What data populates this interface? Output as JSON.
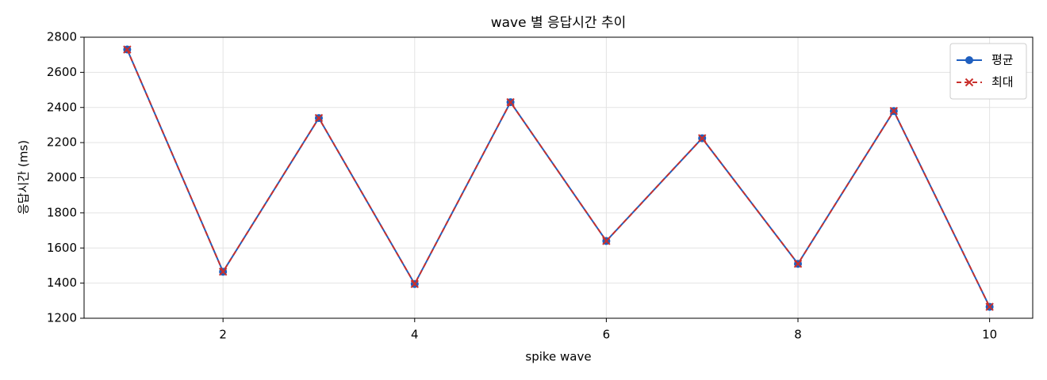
{
  "chart_data": {
    "type": "line",
    "title": "wave 별 응답시간 추이",
    "xlabel": "spike wave",
    "ylabel": "응답시간 (ms)",
    "x": [
      1,
      2,
      3,
      4,
      5,
      6,
      7,
      8,
      9,
      10
    ],
    "series": [
      {
        "name": "평균",
        "color": "#1f5fbf",
        "linestyle": "solid",
        "marker": "circle",
        "values": [
          2730,
          1465,
          2340,
          1395,
          2430,
          1640,
          2225,
          1510,
          2380,
          1265
        ]
      },
      {
        "name": "최대",
        "color": "#c9302c",
        "linestyle": "dashed",
        "marker": "x",
        "values": [
          2730,
          1465,
          2340,
          1395,
          2430,
          1640,
          2225,
          1510,
          2380,
          1265
        ]
      }
    ],
    "xlim": [
      0.55,
      10.45
    ],
    "xticks": [
      2,
      4,
      6,
      8,
      10
    ],
    "ylim": [
      1200,
      2800
    ],
    "yticks": [
      1200,
      1400,
      1600,
      1800,
      2000,
      2200,
      2400,
      2600,
      2800
    ],
    "grid": true,
    "legend": "upper right"
  }
}
